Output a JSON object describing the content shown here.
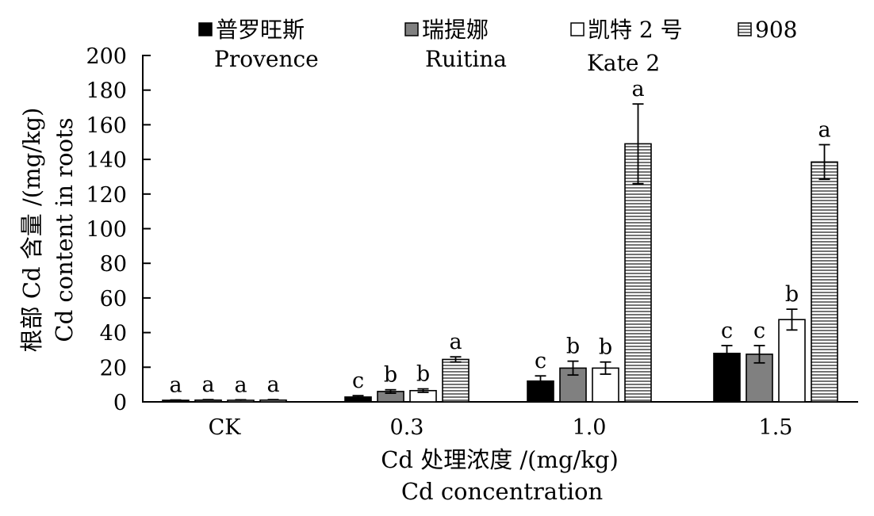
{
  "chart_data": {
    "type": "bar",
    "xlabel": "Cd 处理浓度 /(mg/kg)",
    "xlabel_en": "Cd concentration",
    "ylabel": "根部 Cd 含量 /(mg/kg)",
    "ylabel_en": "Cd content in roots",
    "ylim": [
      0,
      200
    ],
    "yticks": [
      "0",
      "20",
      "40",
      "60",
      "80",
      "100",
      "120",
      "140",
      "160",
      "180",
      "200"
    ],
    "categories": [
      "CK",
      "0.3",
      "1.0",
      "1.5"
    ],
    "grid": false,
    "legend_position": "top",
    "series": [
      {
        "name": "普罗旺斯",
        "name_en": "Provence",
        "fill": "#000000",
        "values": [
          0.8,
          2.8,
          12.0,
          28.0
        ],
        "errors": [
          0.3,
          0.8,
          3.0,
          4.5
        ],
        "letters": [
          "a",
          "c",
          "c",
          "c"
        ]
      },
      {
        "name": "瑞提娜",
        "name_en": "Ruitina",
        "fill": "#808080",
        "values": [
          1.0,
          6.0,
          19.5,
          27.5
        ],
        "errors": [
          0.3,
          1.0,
          4.0,
          5.0
        ],
        "letters": [
          "a",
          "b",
          "b",
          "c"
        ]
      },
      {
        "name": "凯特 2 号",
        "name_en": "Kate 2",
        "fill": "#ffffff",
        "values": [
          0.9,
          6.5,
          19.5,
          47.5
        ],
        "errors": [
          0.3,
          1.0,
          3.5,
          6.0
        ],
        "letters": [
          "a",
          "b",
          "b",
          "b"
        ]
      },
      {
        "name": "908",
        "name_en": "",
        "fill": "hatch",
        "values": [
          1.0,
          24.5,
          149.0,
          138.5
        ],
        "errors": [
          0.3,
          1.5,
          23.0,
          10.0
        ],
        "letters": [
          "a",
          "a",
          "a",
          "a"
        ]
      }
    ]
  }
}
